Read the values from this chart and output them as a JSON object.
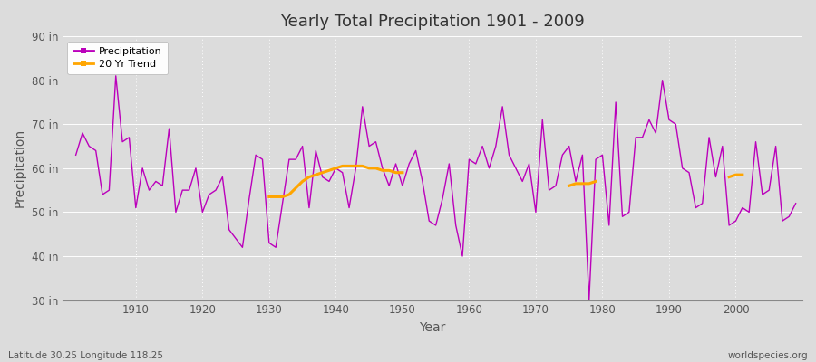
{
  "title": "Yearly Total Precipitation 1901 - 2009",
  "xlabel": "Year",
  "ylabel": "Precipitation",
  "background_color": "#dcdcdc",
  "plot_bg_color": "#dcdcdc",
  "precip_color": "#bb00bb",
  "trend_color": "#ffa500",
  "ylim": [
    30,
    90
  ],
  "yticks": [
    30,
    40,
    50,
    60,
    70,
    80,
    90
  ],
  "ytick_labels": [
    "30 in",
    "40 in",
    "50 in",
    "60 in",
    "70 in",
    "80 in",
    "90 in"
  ],
  "xticks": [
    1910,
    1920,
    1930,
    1940,
    1950,
    1960,
    1970,
    1980,
    1990,
    2000
  ],
  "footer_left": "Latitude 30.25 Longitude 118.25",
  "footer_right": "worldspecies.org",
  "years": [
    1901,
    1902,
    1903,
    1904,
    1905,
    1906,
    1907,
    1908,
    1909,
    1910,
    1911,
    1912,
    1913,
    1914,
    1915,
    1916,
    1917,
    1918,
    1919,
    1920,
    1921,
    1922,
    1923,
    1924,
    1925,
    1926,
    1927,
    1928,
    1929,
    1930,
    1931,
    1932,
    1933,
    1934,
    1935,
    1936,
    1937,
    1938,
    1939,
    1940,
    1941,
    1942,
    1943,
    1944,
    1945,
    1946,
    1947,
    1948,
    1949,
    1950,
    1951,
    1952,
    1953,
    1954,
    1955,
    1956,
    1957,
    1958,
    1959,
    1960,
    1961,
    1962,
    1963,
    1964,
    1965,
    1966,
    1967,
    1968,
    1969,
    1970,
    1971,
    1972,
    1973,
    1974,
    1975,
    1976,
    1977,
    1978,
    1979,
    1980,
    1981,
    1982,
    1983,
    1984,
    1985,
    1986,
    1987,
    1988,
    1989,
    1990,
    1991,
    1992,
    1993,
    1994,
    1995,
    1996,
    1997,
    1998,
    1999,
    2000,
    2001,
    2002,
    2003,
    2004,
    2005,
    2006,
    2007,
    2008,
    2009
  ],
  "precip": [
    63,
    68,
    65,
    64,
    54,
    55,
    81,
    66,
    67,
    51,
    60,
    55,
    57,
    56,
    69,
    50,
    55,
    55,
    60,
    50,
    54,
    55,
    58,
    46,
    44,
    42,
    53,
    63,
    62,
    43,
    42,
    52,
    62,
    62,
    65,
    51,
    64,
    58,
    57,
    60,
    59,
    51,
    60,
    74,
    65,
    66,
    60,
    56,
    61,
    56,
    61,
    64,
    57,
    48,
    47,
    53,
    61,
    47,
    40,
    62,
    61,
    65,
    60,
    65,
    74,
    63,
    60,
    57,
    61,
    50,
    71,
    55,
    56,
    63,
    65,
    57,
    63,
    30,
    62,
    63,
    47,
    75,
    49,
    50,
    67,
    67,
    71,
    68,
    80,
    71,
    70,
    60,
    59,
    51,
    52,
    67,
    58,
    65,
    47,
    48,
    51,
    50,
    66,
    54,
    55,
    65,
    48,
    49,
    52
  ],
  "trend_seg1_years": [
    1930,
    1931,
    1932,
    1933,
    1934,
    1935,
    1936,
    1937,
    1938,
    1939,
    1940,
    1941,
    1942,
    1943,
    1944,
    1945,
    1946,
    1947,
    1948,
    1949,
    1950
  ],
  "trend_seg1_vals": [
    53.5,
    53.5,
    53.5,
    54.0,
    55.5,
    57.0,
    58.0,
    58.5,
    59.0,
    59.5,
    60.0,
    60.5,
    60.5,
    60.5,
    60.5,
    60.0,
    60.0,
    59.5,
    59.5,
    59.0,
    59.0
  ],
  "trend_seg2_years": [
    1975,
    1976,
    1977,
    1978,
    1979
  ],
  "trend_seg2_vals": [
    56.0,
    56.5,
    56.5,
    56.5,
    57.0
  ],
  "trend_seg3_years": [
    1999,
    2000,
    2001
  ],
  "trend_seg3_vals": [
    58.0,
    58.5,
    58.5
  ]
}
